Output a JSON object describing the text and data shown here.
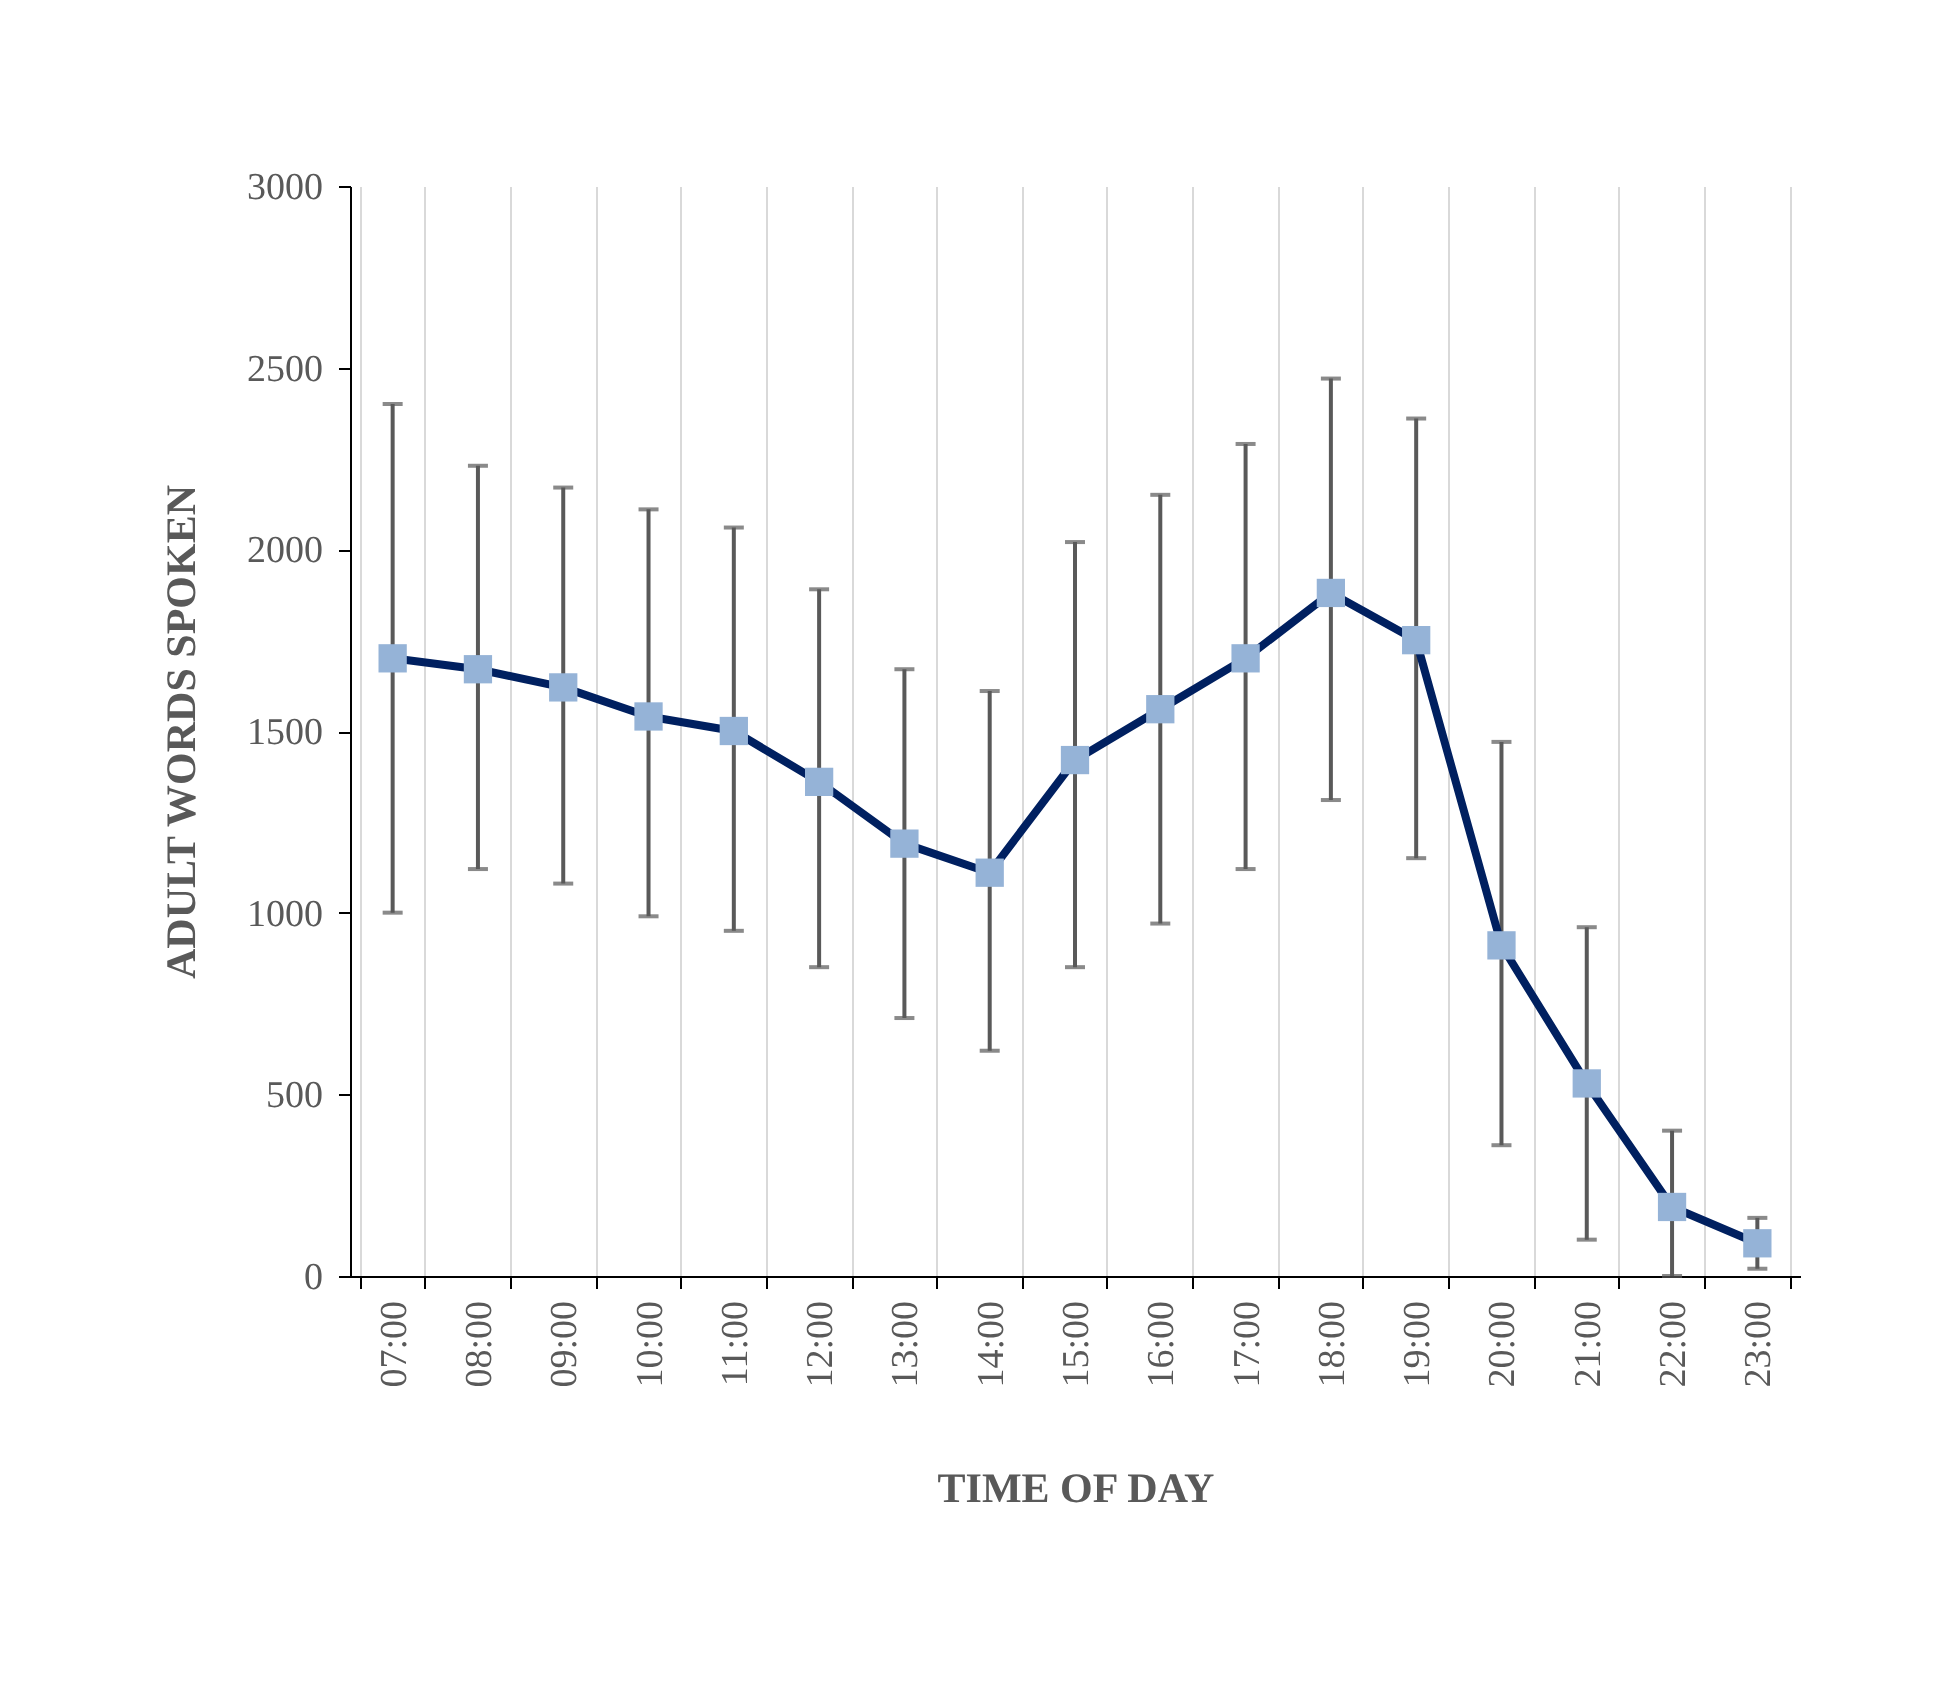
{
  "chart_data": {
    "type": "line",
    "xlabel": "TIME OF DAY",
    "ylabel": "ADULT WORDS SPOKEN",
    "categories": [
      "07:00",
      "08:00",
      "09:00",
      "10:00",
      "11:00",
      "12:00",
      "13:00",
      "14:00",
      "15:00",
      "16:00",
      "17:00",
      "18:00",
      "19:00",
      "20:00",
      "21:00",
      "22:00",
      "23:00"
    ],
    "series": [
      {
        "color": "#002060",
        "values": [
          1700,
          1670,
          1620,
          1540,
          1500,
          1360,
          1190,
          1110,
          1420,
          1560,
          1700,
          1880,
          1750,
          910,
          530,
          190,
          90
        ],
        "errors": [
          [
            1000,
            2400
          ],
          [
            1120,
            2230
          ],
          [
            1080,
            2170
          ],
          [
            990,
            2110
          ],
          [
            950,
            2060
          ],
          [
            850,
            1890
          ],
          [
            710,
            1670
          ],
          [
            620,
            1610
          ],
          [
            850,
            2020
          ],
          [
            970,
            2150
          ],
          [
            1120,
            2290
          ],
          [
            1310,
            2470
          ],
          [
            1150,
            2360
          ],
          [
            360,
            1470
          ],
          [
            100,
            960
          ],
          [
            0,
            400
          ],
          [
            20,
            160
          ]
        ]
      }
    ],
    "ylim": [
      0,
      3000
    ],
    "yticks": [
      0,
      500,
      1000,
      1500,
      2000,
      2500,
      3000
    ],
    "grid": "x",
    "marker": "square",
    "line_style": "solid"
  }
}
